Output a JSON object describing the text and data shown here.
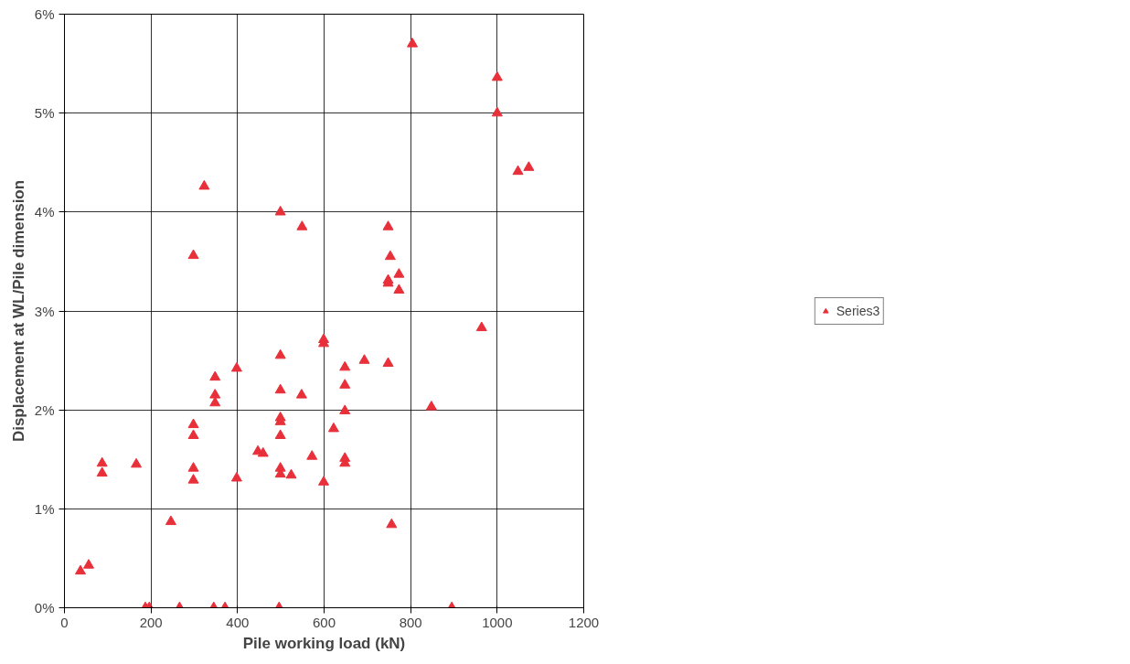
{
  "chart_data": {
    "type": "scatter",
    "xlabel": "Pile working load (kN)",
    "ylabel": "Displacement at WL/Pile dimension",
    "xlim": [
      0,
      1200
    ],
    "xticks": [
      0,
      200,
      400,
      600,
      800,
      1000,
      1200
    ],
    "ylim": [
      0,
      6
    ],
    "yticks": [
      {
        "value": 0,
        "label": "0%"
      },
      {
        "value": 1,
        "label": "1%"
      },
      {
        "value": 2,
        "label": "2%"
      },
      {
        "value": 3,
        "label": "3%"
      },
      {
        "value": 4,
        "label": "4%"
      },
      {
        "value": 5,
        "label": "5%"
      },
      {
        "value": 6,
        "label": "6%"
      }
    ],
    "grid": true,
    "legend": "right",
    "marker": "triangle",
    "series": [
      {
        "name": "Series3",
        "color": "#e8303a",
        "x": [
          37,
          56,
          87,
          87,
          166,
          187,
          196,
          246,
          266,
          298,
          298,
          298,
          298,
          298,
          323,
          345,
          348,
          348,
          348,
          371,
          398,
          398,
          447,
          459,
          496,
          499,
          499,
          499,
          499,
          499,
          499,
          499,
          499,
          524,
          549,
          548,
          572,
          599,
          599,
          599,
          622,
          648,
          648,
          648,
          648,
          648,
          693,
          748,
          748,
          748,
          748,
          753,
          756,
          773,
          773,
          804,
          848,
          895,
          964,
          1000,
          1000,
          1048,
          1073
        ],
        "values": [
          0.37,
          0.43,
          1.46,
          1.36,
          1.45,
          0,
          0,
          0.87,
          0,
          1.85,
          1.74,
          1.41,
          1.29,
          3.56,
          4.26,
          0,
          2.33,
          2.15,
          2.07,
          0,
          2.42,
          1.31,
          1.58,
          1.56,
          0,
          4.0,
          2.55,
          2.2,
          1.92,
          1.88,
          1.74,
          1.41,
          1.35,
          1.34,
          3.85,
          2.15,
          1.53,
          1.27,
          2.71,
          2.67,
          1.81,
          2.43,
          2.25,
          1.99,
          1.51,
          1.46,
          2.5,
          3.85,
          3.31,
          3.28,
          2.47,
          3.55,
          0.84,
          3.37,
          3.21,
          5.7,
          2.03,
          0,
          2.83,
          5.36,
          5.0,
          4.41,
          4.45
        ]
      }
    ]
  }
}
